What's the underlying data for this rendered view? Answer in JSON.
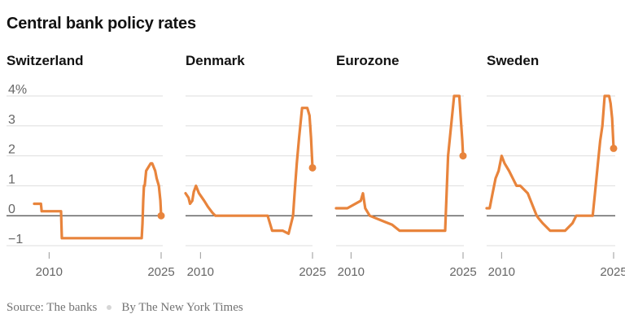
{
  "title": "Central bank policy rates",
  "footer": {
    "source": "Source: The banks",
    "byline": "By The New York Times"
  },
  "colors": {
    "line": "#e8843c",
    "grid": "#dddddd",
    "zero": "#333333",
    "tick": "#666666"
  },
  "chart_data": [
    {
      "type": "line",
      "title": "Switzerland",
      "ylim": [
        -1,
        4
      ],
      "yticks": [
        "4%",
        "3",
        "2",
        "1",
        "0",
        "−1"
      ],
      "xticks": [
        "2010",
        "2025"
      ],
      "grid": true,
      "x": [
        2008.0,
        2008.9,
        2009.0,
        2011.6,
        2011.7,
        2014.9,
        2015.0,
        2022.4,
        2022.5,
        2022.6,
        2022.7,
        2022.8,
        2023.0,
        2023.6,
        2023.8,
        2024.2,
        2024.4,
        2024.7,
        2024.9,
        2025.0
      ],
      "values": [
        0.4,
        0.4,
        0.15,
        0.15,
        -0.75,
        -0.75,
        -0.75,
        -0.75,
        -0.25,
        0.5,
        1.0,
        1.0,
        1.5,
        1.75,
        1.75,
        1.5,
        1.25,
        1.0,
        0.5,
        0.0
      ]
    },
    {
      "type": "line",
      "title": "Denmark",
      "ylim": [
        -1,
        4
      ],
      "yticks": [
        "4%",
        "3",
        "2",
        "1",
        "0",
        "−1"
      ],
      "xticks": [
        "2010",
        "2025"
      ],
      "grid": true,
      "x": [
        2008.0,
        2008.4,
        2008.6,
        2008.9,
        2009.1,
        2009.4,
        2009.8,
        2010.5,
        2011.0,
        2011.6,
        2012.0,
        2014.0,
        2015.0,
        2019.0,
        2019.6,
        2021.0,
        2021.8,
        2022.4,
        2022.6,
        2022.9,
        2023.2,
        2023.6,
        2024.3,
        2024.6,
        2024.8,
        2025.0
      ],
      "values": [
        0.75,
        0.6,
        0.4,
        0.5,
        0.8,
        1.0,
        0.75,
        0.5,
        0.3,
        0.1,
        0.0,
        0.0,
        0.0,
        0.0,
        -0.5,
        -0.5,
        -0.6,
        0.0,
        0.75,
        1.75,
        2.6,
        3.6,
        3.6,
        3.35,
        2.6,
        1.6
      ]
    },
    {
      "type": "line",
      "title": "Eurozone",
      "ylim": [
        -1,
        4
      ],
      "yticks": [
        "4%",
        "3",
        "2",
        "1",
        "0",
        "−1"
      ],
      "xticks": [
        "2010",
        "2025"
      ],
      "grid": true,
      "x": [
        2008.0,
        2009.5,
        2011.3,
        2011.6,
        2011.9,
        2012.5,
        2014.5,
        2015.5,
        2016.5,
        2022.6,
        2022.8,
        2023.0,
        2023.4,
        2023.8,
        2024.5,
        2024.7,
        2024.9,
        2025.0
      ],
      "values": [
        0.25,
        0.25,
        0.5,
        0.75,
        0.25,
        0.0,
        -0.2,
        -0.3,
        -0.5,
        -0.5,
        0.75,
        2.0,
        3.0,
        4.0,
        4.0,
        3.25,
        2.5,
        2.0
      ]
    },
    {
      "type": "line",
      "title": "Sweden",
      "ylim": [
        -1,
        4
      ],
      "yticks": [
        "4%",
        "3",
        "2",
        "1",
        "0",
        "−1"
      ],
      "xticks": [
        "2010",
        "2025"
      ],
      "grid": true,
      "x": [
        2008.0,
        2008.4,
        2008.8,
        2009.2,
        2009.6,
        2010.0,
        2010.4,
        2011.0,
        2011.5,
        2012.0,
        2012.5,
        2013.5,
        2014.3,
        2014.7,
        2015.0,
        2015.5,
        2016.5,
        2018.5,
        2019.5,
        2020.0,
        2022.2,
        2022.5,
        2022.9,
        2023.2,
        2023.5,
        2023.8,
        2024.4,
        2024.6,
        2024.8,
        2025.0
      ],
      "values": [
        0.25,
        0.25,
        0.75,
        1.25,
        1.5,
        2.0,
        1.75,
        1.5,
        1.25,
        1.0,
        1.0,
        0.75,
        0.25,
        0.0,
        -0.1,
        -0.25,
        -0.5,
        -0.5,
        -0.25,
        0.0,
        0.0,
        0.75,
        1.75,
        2.5,
        3.0,
        4.0,
        4.0,
        3.75,
        3.25,
        2.25
      ]
    }
  ]
}
